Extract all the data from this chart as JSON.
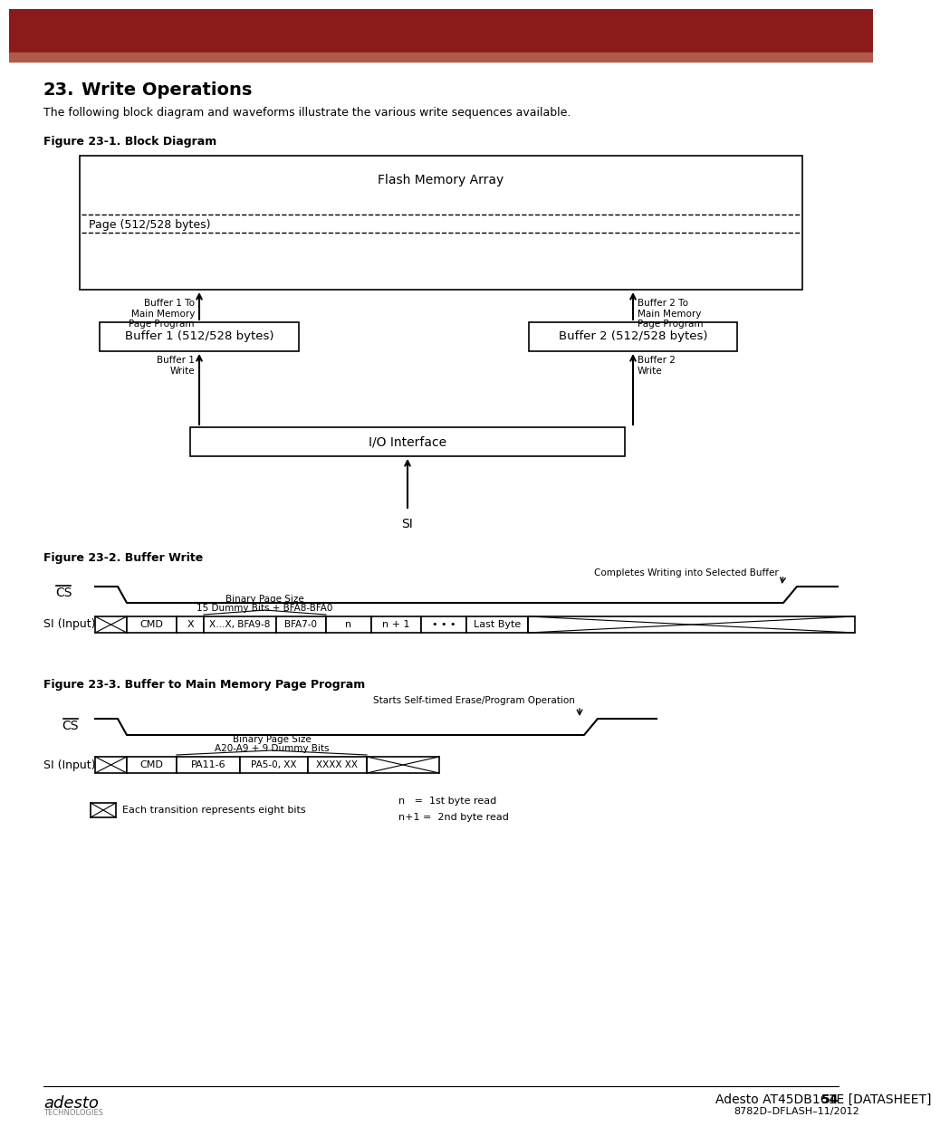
{
  "title_bar_color1": "#8B1A1A",
  "title_bar_color2": "#B05A4A",
  "bg_color": "#FFFFFF",
  "heading_number": "23.",
  "heading_text": "Write Operations",
  "intro_text": "The following block diagram and waveforms illustrate the various write sequences available.",
  "fig1_title": "Figure 23-1. Block Diagram",
  "fig2_title": "Figure 23-2. Buffer Write",
  "fig3_title": "Figure 23-3. Buffer to Main Memory Page Program",
  "footer_left": "adesto\nTECHNOLOGIES",
  "footer_right1": "Adesto AT45DB161E [DATASHEET]",
  "footer_right2": "54",
  "footer_right3": "8782D–DFLASH–11/2012"
}
